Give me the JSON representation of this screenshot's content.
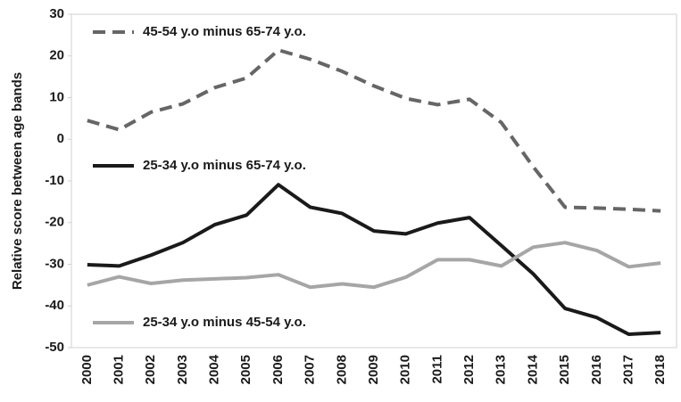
{
  "chart_data": {
    "type": "line",
    "y_label": "Relative score between age bands",
    "categories": [
      "2000",
      "2001",
      "2002",
      "2003",
      "2004",
      "2005",
      "2006",
      "2007",
      "2008",
      "2009",
      "2010",
      "2011",
      "2012",
      "2013",
      "2014",
      "2015",
      "2016",
      "2017",
      "2018"
    ],
    "series": [
      {
        "name": "45-54 y.o minus 65-74 y.o.",
        "color": "#666666",
        "style": "dashed",
        "values": [
          4.5,
          2.3,
          6.5,
          8.5,
          12.4,
          14.7,
          21.4,
          19.2,
          16.3,
          12.8,
          9.8,
          8.3,
          9.6,
          4,
          -6.6,
          -16.3,
          -16.5,
          -16.8,
          -17.2
        ]
      },
      {
        "name": "25-34 y.o minus 65-74 y.o.",
        "color": "#1a1a1a",
        "style": "solid",
        "values": [
          -30.1,
          -30.4,
          -27.8,
          -24.8,
          -20.5,
          -18.2,
          -10.9,
          -16.3,
          -17.8,
          -22,
          -22.7,
          -20.1,
          -18.8,
          -25.5,
          -32.3,
          -40.6,
          -42.8,
          -46.8,
          -46.4
        ]
      },
      {
        "name": "25-34 y.o minus 45-54 y.o.",
        "color": "#a6a6a6",
        "style": "solid",
        "values": [
          -35,
          -33,
          -34.6,
          -33.8,
          -33.5,
          -33.2,
          -32.5,
          -35.5,
          -34.7,
          -35.5,
          -33.1,
          -28.9,
          -28.9,
          -30.4,
          -25.9,
          -24.8,
          -26.7,
          -30.6,
          -29.7
        ]
      }
    ],
    "ylim": [
      -50,
      30
    ],
    "yticks": [
      -50,
      -40,
      -30,
      -20,
      -10,
      0,
      10,
      20,
      30
    ],
    "grid": false
  }
}
